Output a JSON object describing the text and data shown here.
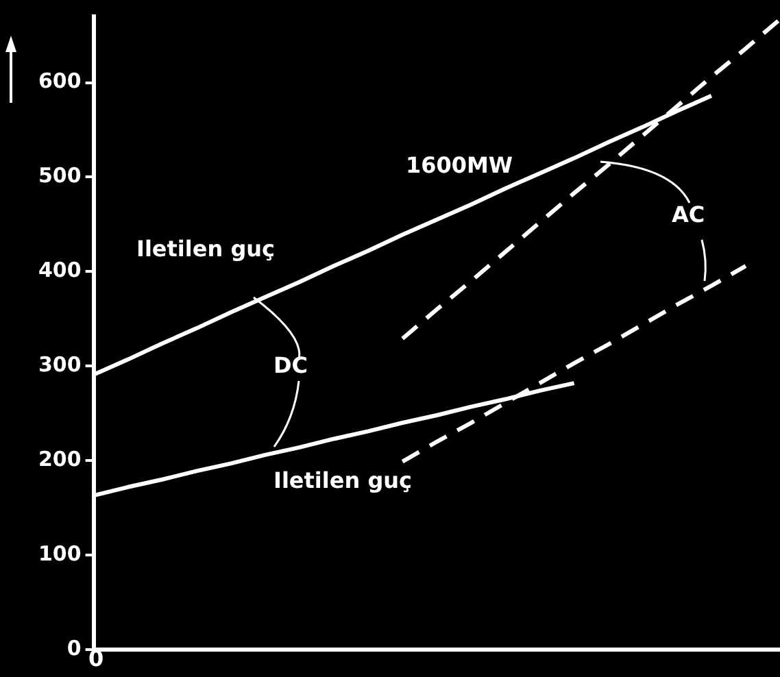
{
  "chart_data": {
    "type": "line",
    "categories": [
      null,
      null,
      null,
      null,
      null,
      null,
      null,
      null,
      null,
      null,
      null,
      null,
      null,
      null,
      null,
      null,
      null,
      null,
      null,
      null,
      null
    ],
    "series": [
      {
        "color": "#ffffff",
        "line_style": "solid",
        "values": [
          291,
          307,
          324,
          340,
          357,
          373,
          389,
          406,
          422,
          439,
          455,
          471,
          488,
          504,
          520,
          537,
          553,
          570,
          586,
          null,
          null
        ]
      },
      {
        "color": "#ffffff",
        "line_style": "solid",
        "values": [
          163,
          172,
          180,
          189,
          197,
          206,
          214,
          223,
          231,
          240,
          248,
          257,
          265,
          274,
          282,
          null,
          null,
          null,
          null,
          null,
          null
        ]
      },
      {
        "color": "#ffffff",
        "line_style": "dashed",
        "values": [
          null,
          null,
          null,
          null,
          null,
          null,
          null,
          null,
          null,
          329,
          360,
          390,
          421,
          452,
          483,
          513,
          544,
          575,
          606,
          636,
          667
        ]
      },
      {
        "color": "#ffffff",
        "line_style": "dashed",
        "values": [
          null,
          null,
          null,
          null,
          null,
          null,
          null,
          null,
          null,
          199,
          220,
          240,
          261,
          282,
          303,
          323,
          344,
          365,
          385,
          406,
          null
        ]
      }
    ],
    "ylim": [
      0,
      670
    ],
    "yticks": [
      0,
      100,
      200,
      300,
      400,
      500,
      600
    ],
    "grid": false,
    "legend": false,
    "marker": "none",
    "annotations": [
      "0",
      "1600MW",
      "Iletilen guç",
      "DC",
      "Iletilen guç",
      "AC"
    ]
  }
}
